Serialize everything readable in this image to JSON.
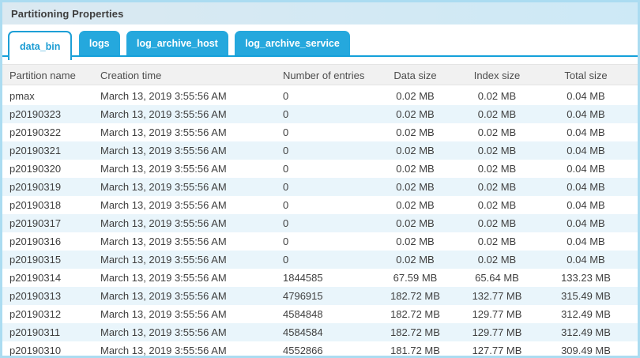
{
  "panel": {
    "title": "Partitioning Properties"
  },
  "tabs": [
    {
      "label": "data_bin",
      "active": true
    },
    {
      "label": "logs",
      "active": false
    },
    {
      "label": "log_archive_host",
      "active": false
    },
    {
      "label": "log_archive_service",
      "active": false
    }
  ],
  "table": {
    "columns": [
      "Partition name",
      "Creation time",
      "Number of entries",
      "Data size",
      "Index size",
      "Total size"
    ],
    "rows": [
      [
        "pmax",
        "March 13, 2019 3:55:56 AM",
        "0",
        "0.02 MB",
        "0.02 MB",
        "0.04 MB"
      ],
      [
        "p20190323",
        "March 13, 2019 3:55:56 AM",
        "0",
        "0.02 MB",
        "0.02 MB",
        "0.04 MB"
      ],
      [
        "p20190322",
        "March 13, 2019 3:55:56 AM",
        "0",
        "0.02 MB",
        "0.02 MB",
        "0.04 MB"
      ],
      [
        "p20190321",
        "March 13, 2019 3:55:56 AM",
        "0",
        "0.02 MB",
        "0.02 MB",
        "0.04 MB"
      ],
      [
        "p20190320",
        "March 13, 2019 3:55:56 AM",
        "0",
        "0.02 MB",
        "0.02 MB",
        "0.04 MB"
      ],
      [
        "p20190319",
        "March 13, 2019 3:55:56 AM",
        "0",
        "0.02 MB",
        "0.02 MB",
        "0.04 MB"
      ],
      [
        "p20190318",
        "March 13, 2019 3:55:56 AM",
        "0",
        "0.02 MB",
        "0.02 MB",
        "0.04 MB"
      ],
      [
        "p20190317",
        "March 13, 2019 3:55:56 AM",
        "0",
        "0.02 MB",
        "0.02 MB",
        "0.04 MB"
      ],
      [
        "p20190316",
        "March 13, 2019 3:55:56 AM",
        "0",
        "0.02 MB",
        "0.02 MB",
        "0.04 MB"
      ],
      [
        "p20190315",
        "March 13, 2019 3:55:56 AM",
        "0",
        "0.02 MB",
        "0.02 MB",
        "0.04 MB"
      ],
      [
        "p20190314",
        "March 13, 2019 3:55:56 AM",
        "1844585",
        "67.59 MB",
        "65.64 MB",
        "133.23 MB"
      ],
      [
        "p20190313",
        "March 13, 2019 3:55:56 AM",
        "4796915",
        "182.72 MB",
        "132.77 MB",
        "315.49 MB"
      ],
      [
        "p20190312",
        "March 13, 2019 3:55:56 AM",
        "4584848",
        "182.72 MB",
        "129.77 MB",
        "312.49 MB"
      ],
      [
        "p20190311",
        "March 13, 2019 3:55:56 AM",
        "4584584",
        "182.72 MB",
        "129.77 MB",
        "312.49 MB"
      ],
      [
        "p20190310",
        "March 13, 2019 3:55:56 AM",
        "4552866",
        "181.72 MB",
        "127.77 MB",
        "309.49 MB"
      ]
    ]
  },
  "colors": {
    "accent_blue": "#25a8dd",
    "tab_active_text": "#1b9cd3",
    "tab_baseline": "#14a0da",
    "panel_border": "#abdcf1",
    "titlebar_bg_left": "#dbe9f1",
    "titlebar_bg_right": "#cde9f6",
    "header_bg": "#f1f1f1",
    "row_stripe": "#e9f5fb",
    "text": "#3f3f3f"
  }
}
